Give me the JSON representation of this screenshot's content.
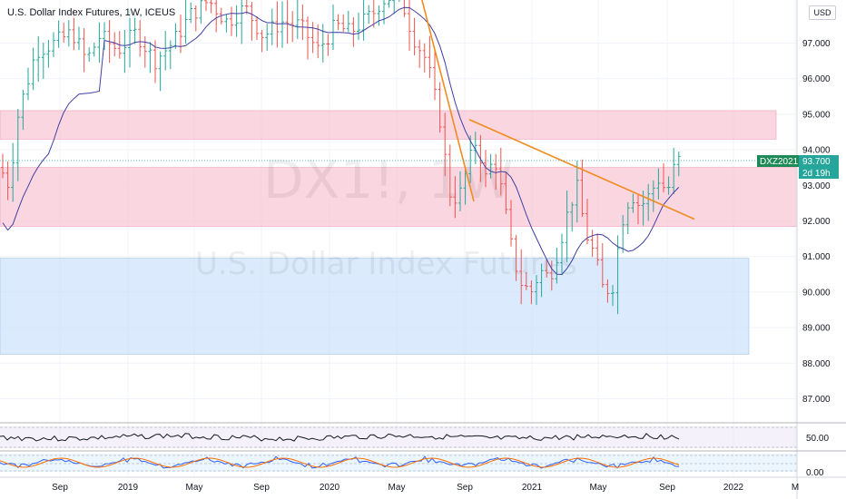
{
  "title": "U.S. Dollar Index Futures, 1W, ICEUS",
  "watermark": {
    "symbol": "DX1!, 1W",
    "name": "U.S. Dollar Index Futures"
  },
  "currency_button": "USD",
  "price_tag": {
    "symbol": "DXZ2021",
    "price": "93.700",
    "countdown": "2d 19h",
    "bg_color": "#26a69a",
    "symbol_bg": "#1e8a57"
  },
  "colors": {
    "up": "#26a69a",
    "down": "#ef5350",
    "ma": "#3f3fa5",
    "trend": "#f08c1e",
    "resistance_zone": "#f8c8d6",
    "support_zone": "#cfe3fb",
    "rsi_line": "#131722",
    "stoch_k": "#2962ff",
    "stoch_d": "#ff6d00"
  },
  "chart_data": {
    "type": "candlestick",
    "y_axis": {
      "min": 86.2,
      "max": 98.2,
      "ticks": [
        "97.000",
        "96.000",
        "95.000",
        "94.000",
        "93.000",
        "92.000",
        "91.000",
        "90.000",
        "89.000",
        "88.000",
        "87.000"
      ]
    },
    "x_axis": {
      "ticks": [
        "Sep",
        "2019",
        "May",
        "Sep",
        "2020",
        "May",
        "Sep",
        "2021",
        "May",
        "Sep",
        "2022",
        "M"
      ]
    },
    "zones": [
      {
        "name": "resistance-upper",
        "y_low": 94.3,
        "y_high": 95.1
      },
      {
        "name": "resistance-lower",
        "y_low": 91.85,
        "y_high": 93.5
      },
      {
        "name": "support",
        "y_low": 88.25,
        "y_high": 90.95
      }
    ],
    "trendlines": [
      {
        "from": {
          "x": "2020-04",
          "y": 98.3
        },
        "to": {
          "x": "2020-08",
          "y": 92.55
        }
      },
      {
        "from": {
          "x": "2020-09",
          "y": 94.85
        },
        "to": {
          "x": "2021-10",
          "y": 92.05
        }
      }
    ],
    "last_price": 93.7,
    "rsi_panel": {
      "ticks": [
        "50.00"
      ]
    },
    "stoch_panel": {
      "ticks": [
        "0.00"
      ]
    }
  }
}
